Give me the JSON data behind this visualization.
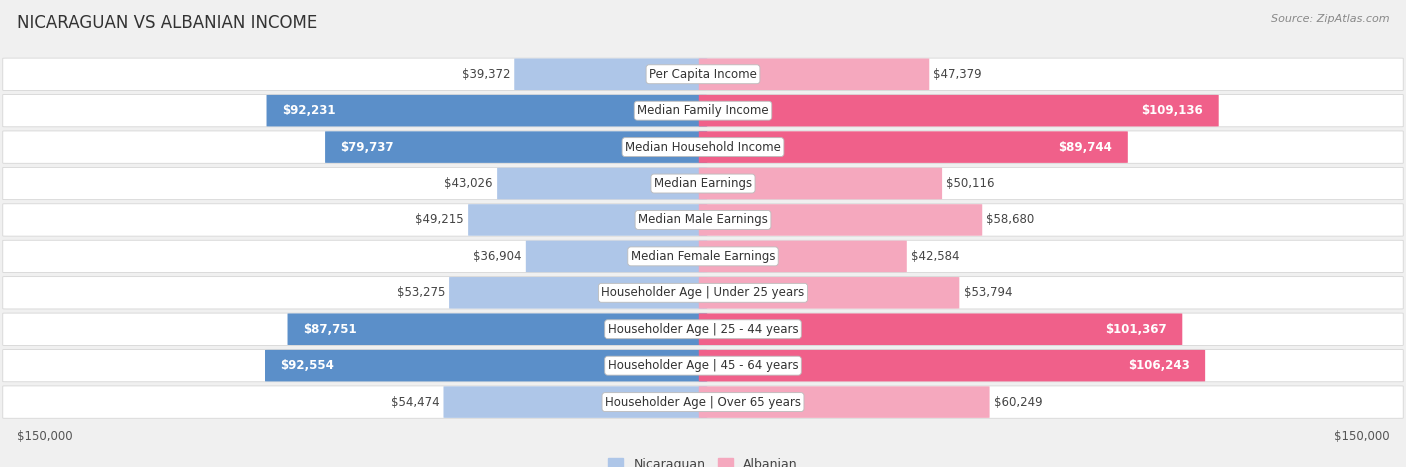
{
  "title": "NICARAGUAN VS ALBANIAN INCOME",
  "source": "Source: ZipAtlas.com",
  "categories": [
    "Per Capita Income",
    "Median Family Income",
    "Median Household Income",
    "Median Earnings",
    "Median Male Earnings",
    "Median Female Earnings",
    "Householder Age | Under 25 years",
    "Householder Age | 25 - 44 years",
    "Householder Age | 45 - 64 years",
    "Householder Age | Over 65 years"
  ],
  "nicaraguan": [
    39372,
    92231,
    79737,
    43026,
    49215,
    36904,
    53275,
    87751,
    92554,
    54474
  ],
  "albanian": [
    47379,
    109136,
    89744,
    50116,
    58680,
    42584,
    53794,
    101367,
    106243,
    60249
  ],
  "max_val": 150000,
  "blue_light": "#aec6e8",
  "blue_dark": "#5b8fc9",
  "pink_light": "#f5a8be",
  "pink_dark": "#f0608a",
  "blue_text_thresh": 75000,
  "pink_text_thresh": 75000,
  "bg_color": "#f0f0f0",
  "row_bg": "#ffffff",
  "label_fontsize": 8.5,
  "value_fontsize": 8.5,
  "title_fontsize": 12,
  "source_fontsize": 8
}
